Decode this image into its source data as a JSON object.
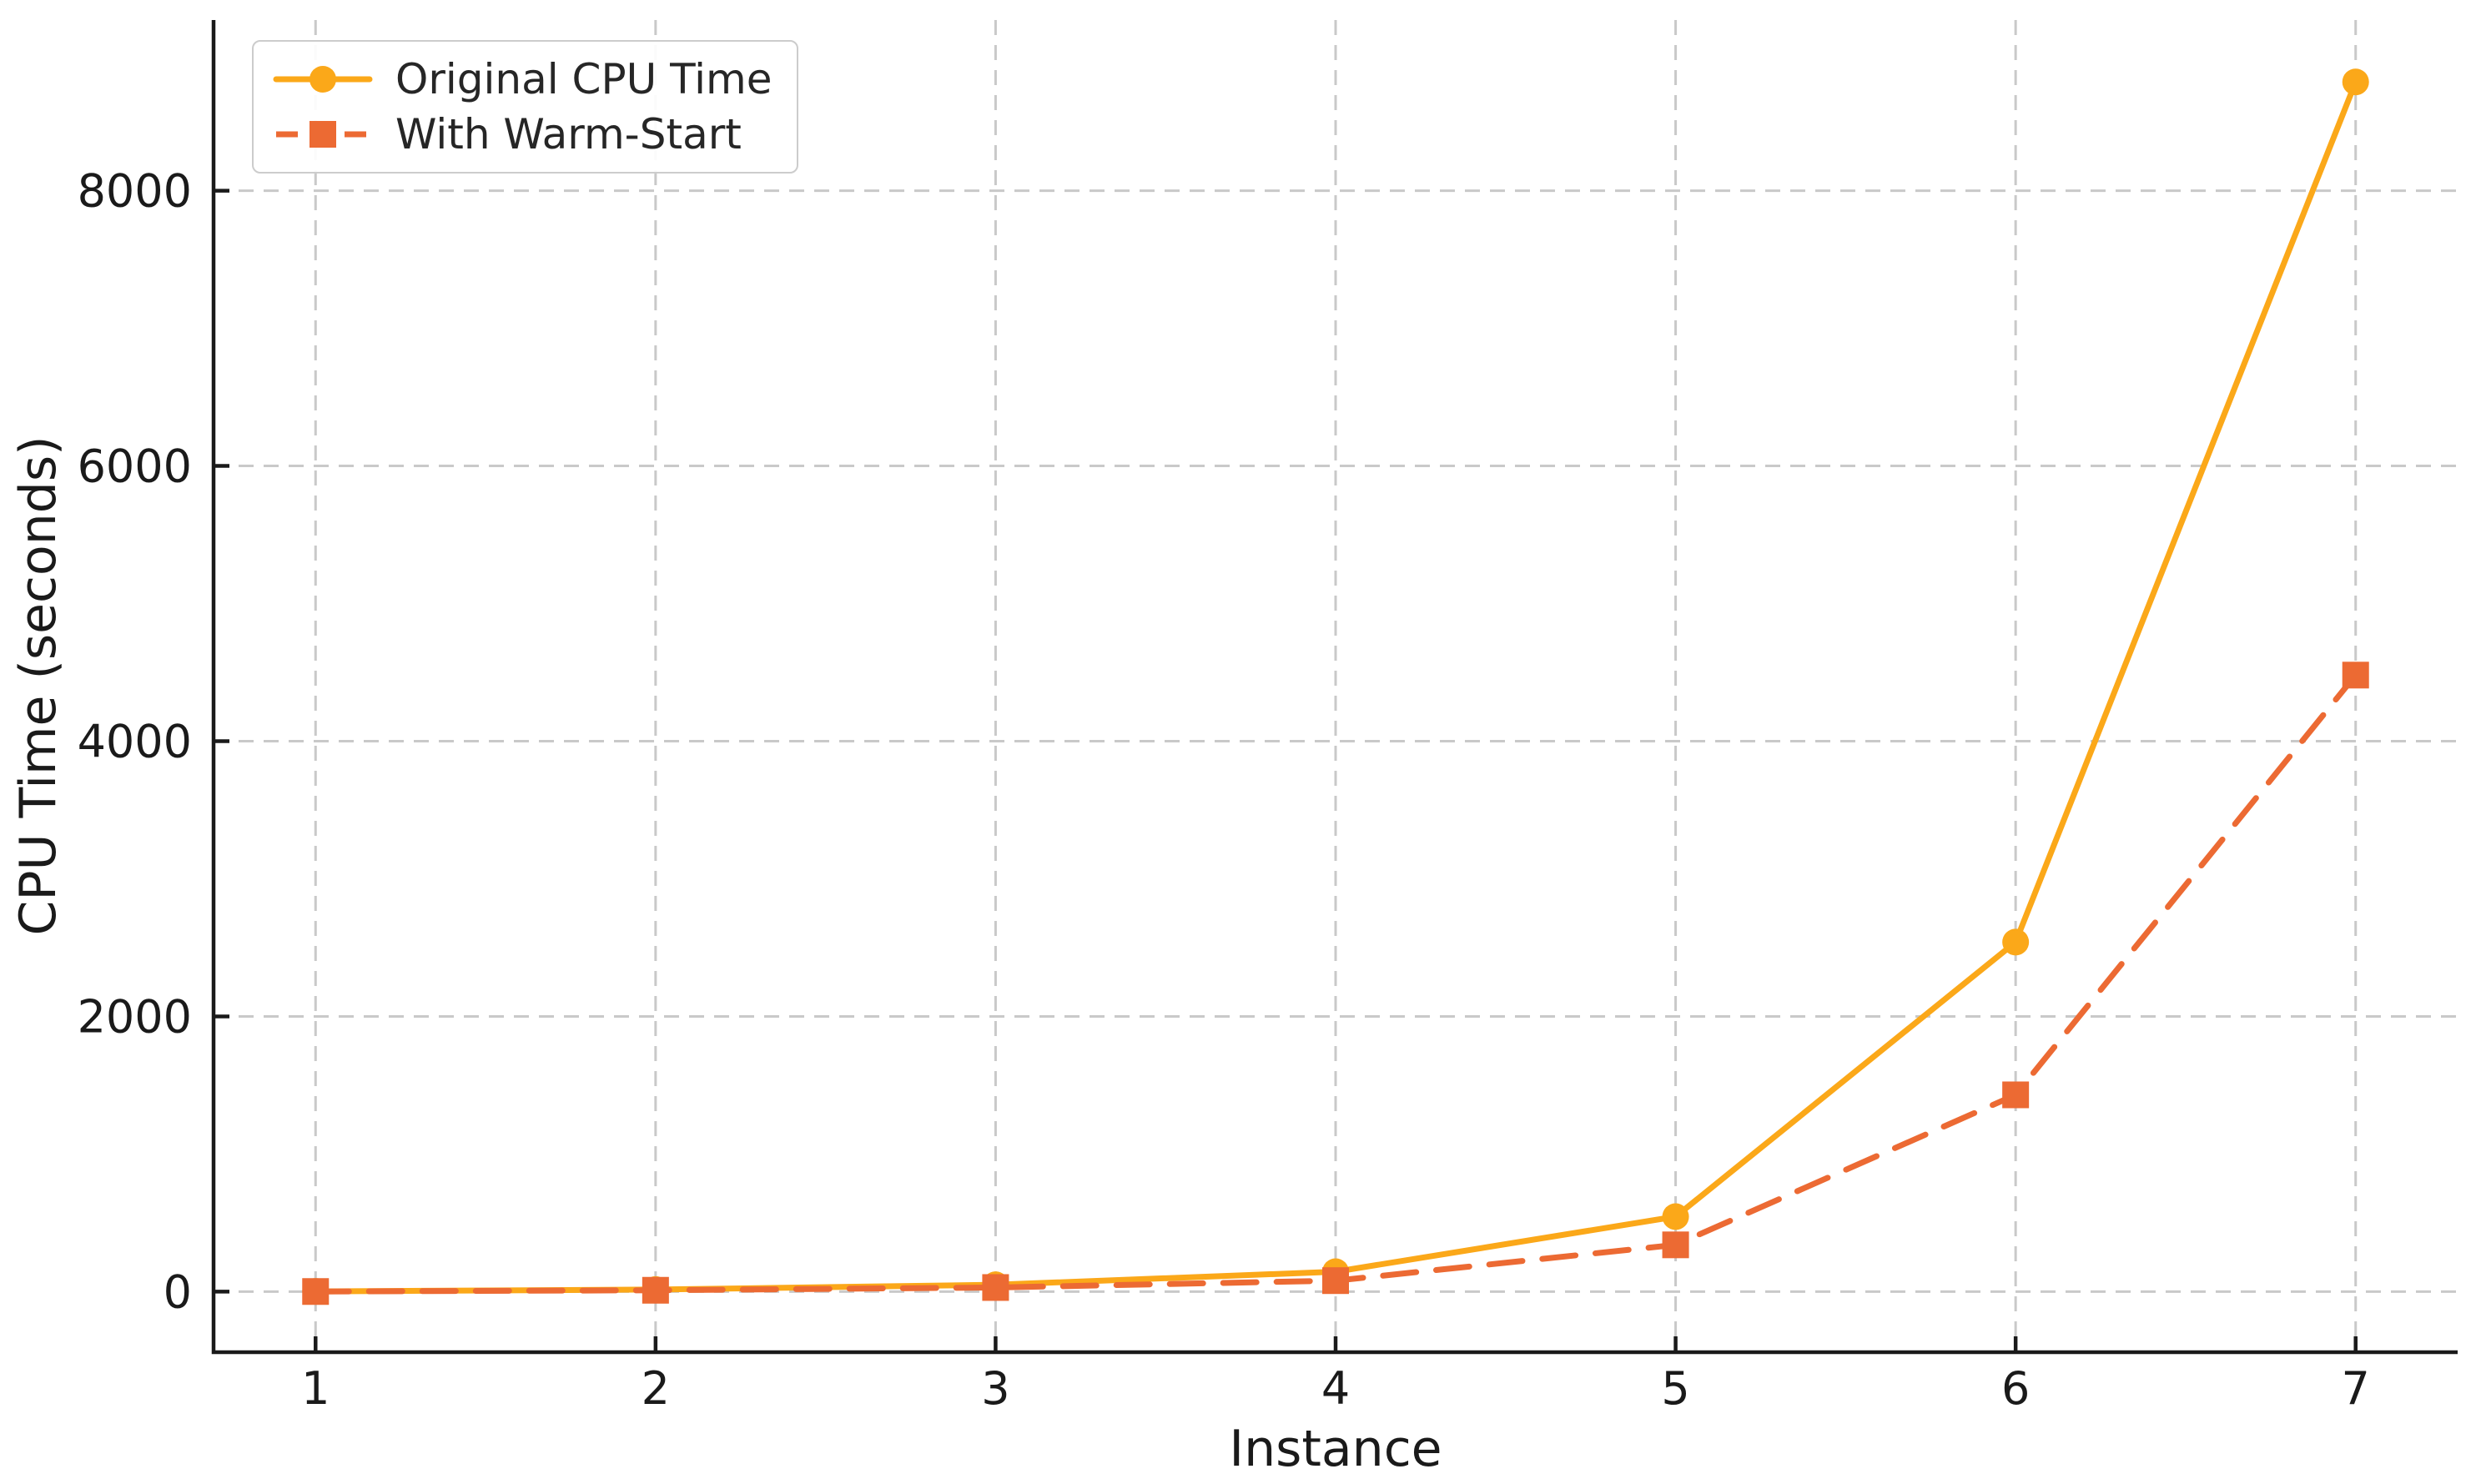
{
  "chart_data": {
    "type": "line",
    "title": "",
    "xlabel": "Instance",
    "ylabel": "CPU Time (seconds)",
    "x": [
      1,
      2,
      3,
      4,
      5,
      6,
      7
    ],
    "series": [
      {
        "name": "Original CPU Time",
        "values": [
          2,
          15,
          50,
          145,
          545,
          2540,
          8790
        ],
        "color": "#FBA819",
        "line_style": "solid",
        "marker": "circle"
      },
      {
        "name": "With Warm-Start",
        "values": [
          1,
          10,
          30,
          80,
          340,
          1430,
          4480
        ],
        "color": "#EC6A33",
        "line_style": "dashed",
        "marker": "square"
      }
    ],
    "x_ticks": [
      "1",
      "2",
      "3",
      "4",
      "5",
      "6",
      "7"
    ],
    "y_ticks": [
      "0",
      "2000",
      "4000",
      "6000",
      "8000"
    ],
    "x_tick_values": [
      1,
      2,
      3,
      4,
      5,
      6,
      7
    ],
    "y_tick_values": [
      0,
      2000,
      4000,
      6000,
      8000
    ],
    "xlim": [
      0.7,
      7.3
    ],
    "ylim": [
      -440,
      9240
    ],
    "grid": true,
    "grid_style": "dashed",
    "legend_position": "upper-left"
  },
  "colors": {
    "background": "#ffffff",
    "grid": "#c9c9c9",
    "axis": "#1a1a1a",
    "tick_text": "#1a1a1a",
    "legend_border": "#cccccc",
    "series_original": "#FBA819",
    "series_warm_start": "#EC6A33"
  }
}
